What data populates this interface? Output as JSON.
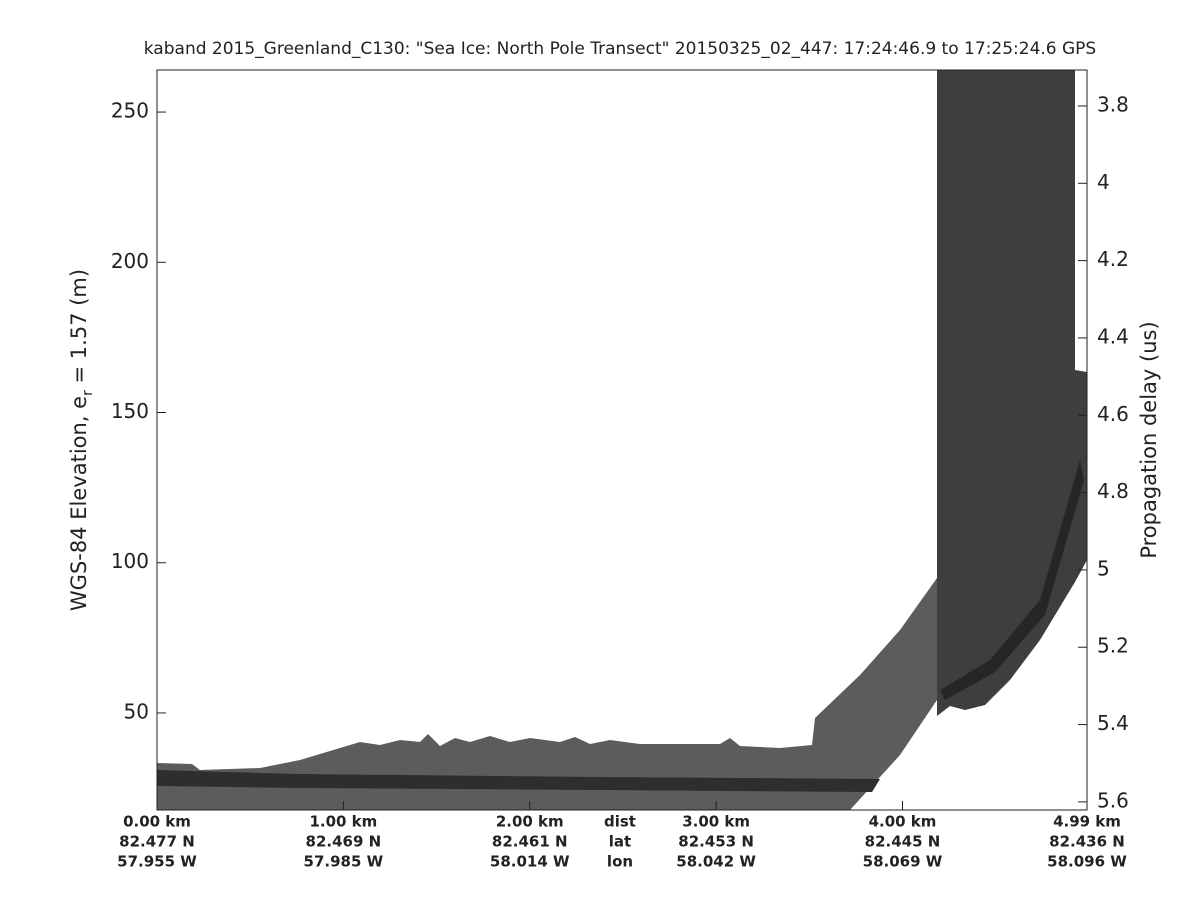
{
  "chart_data": {
    "type": "echogram",
    "title": "kaband 2015_Greenland_C130: \"Sea Ice: North Pole Transect\"  20150325_02_447: 17:24:46.9 to 17:25:24.6 GPS",
    "ylabel": [
      "WGS-84 Elevation, e",
      "r",
      " = 1.57 (m)"
    ],
    "y2label": "Propagation delay (us)",
    "ylim": [
      17.7,
      264
    ],
    "yticks": [
      50,
      100,
      150,
      200,
      250
    ],
    "y2lim": [
      3.707,
      5.621
    ],
    "y2ticks": [
      3.8,
      4,
      4.2,
      4.4,
      4.6,
      4.8,
      5,
      5.2,
      5.4,
      5.6
    ],
    "xlim": [
      0,
      4.99
    ],
    "xticks": [
      {
        "value": 0,
        "label": "0.00 km"
      },
      {
        "value": 1,
        "label": "1.00 km"
      },
      {
        "value": 2,
        "label": "2.00 km"
      },
      {
        "value": 3,
        "label": "3.00 km"
      },
      {
        "value": 4,
        "label": "4.00 km"
      },
      {
        "value": 4.99,
        "label": "4.99 km"
      }
    ],
    "lat_labels": [
      "82.477 N",
      "82.469 N",
      "82.461 N",
      "82.453 N",
      "82.445 N",
      "82.436 N"
    ],
    "lon_labels": [
      "57.955 W",
      "57.985 W",
      "58.014 W",
      "58.042 W",
      "58.069 W",
      "58.096 W"
    ],
    "row_names": [
      "dist",
      "lat",
      "lon"
    ]
  }
}
